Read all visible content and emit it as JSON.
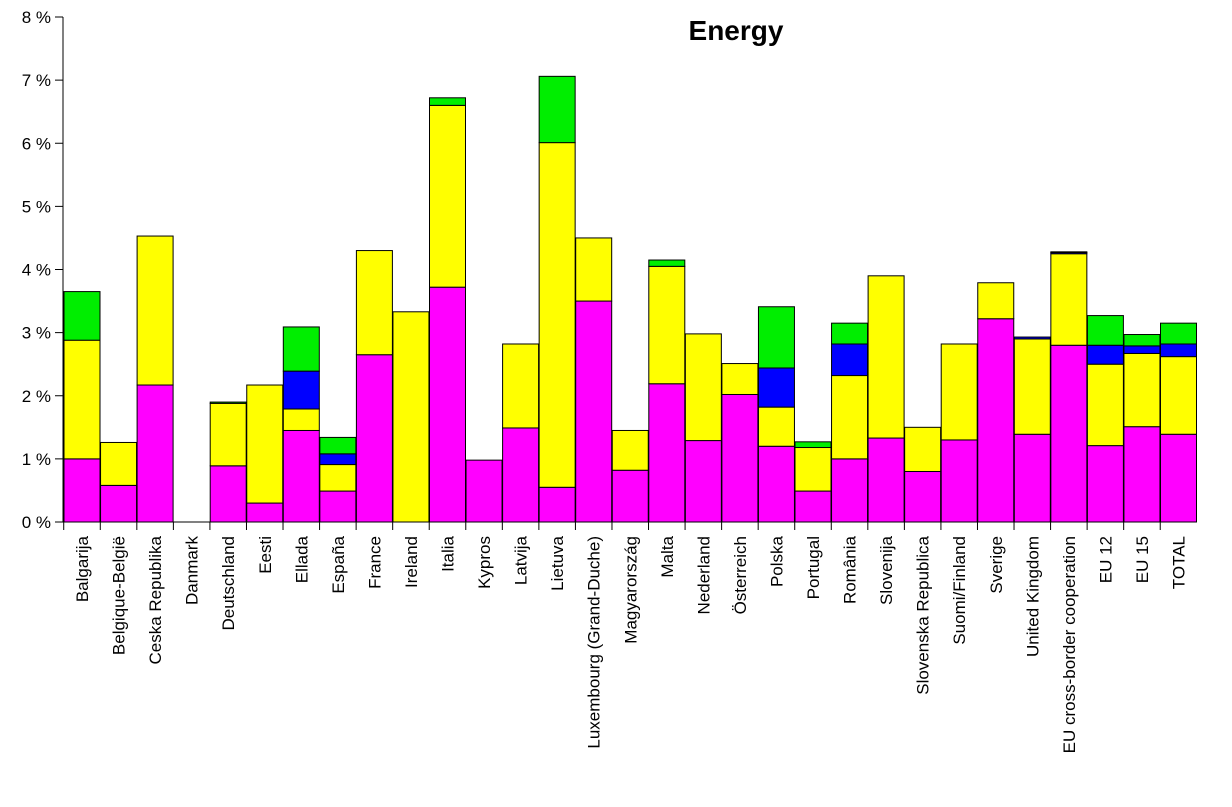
{
  "chart_data": {
    "type": "bar",
    "stacked": true,
    "title": "Energy",
    "xlabel": "",
    "ylabel": "",
    "ylim": [
      0,
      8
    ],
    "y_ticks": [
      0,
      1,
      2,
      3,
      4,
      5,
      6,
      7,
      8
    ],
    "y_tick_labels": [
      "0 %",
      "1 %",
      "2 %",
      "3 %",
      "4 %",
      "5 %",
      "6 %",
      "7 %",
      "8 %"
    ],
    "grid": false,
    "legend": "none",
    "categories": [
      "Balgarija",
      "Belgique-België",
      "Ceska Republika",
      "Danmark",
      "Deutschland",
      "Eesti",
      "Ellada",
      "España",
      "France",
      "Ireland",
      "Italia",
      "Kypros",
      "Latvija",
      "Lietuva",
      "Luxembourg (Grand-Duche)",
      "Magyarország",
      "Malta",
      "Nederland",
      "Österreich",
      "Polska",
      "Portugal",
      "România",
      "Slovenija",
      "Slovenska Republica",
      "Suomi/Finland",
      "Sverige",
      "United Kingdom",
      "EU cross-border cooperation",
      "EU 12",
      "EU 15",
      "TOTAL"
    ],
    "series": [
      {
        "color": "#ff00ff",
        "values": [
          1.0,
          0.58,
          2.17,
          0,
          0.89,
          0.3,
          1.45,
          0.49,
          2.65,
          0,
          3.72,
          0.98,
          1.49,
          0.55,
          3.5,
          0.82,
          2.19,
          1.29,
          2.02,
          1.2,
          0.49,
          1.0,
          1.33,
          0.8,
          1.3,
          3.22,
          1.39,
          2.8,
          1.21,
          1.51,
          1.39
        ]
      },
      {
        "color": "#ffff00",
        "values": [
          1.88,
          0.68,
          2.36,
          0,
          0.99,
          1.87,
          0.34,
          0.42,
          1.65,
          3.33,
          2.88,
          0,
          1.33,
          5.46,
          1.0,
          0.63,
          1.86,
          1.69,
          0.49,
          0.62,
          0.69,
          1.32,
          2.57,
          0.7,
          1.52,
          0.57,
          1.51,
          1.45,
          1.29,
          1.16,
          1.23
        ]
      },
      {
        "color": "#0000ff",
        "values": [
          0,
          0,
          0,
          0,
          0,
          0,
          0.6,
          0.17,
          0,
          0,
          0,
          0,
          0,
          0,
          0,
          0,
          0,
          0,
          0,
          0.62,
          0,
          0.5,
          0,
          0,
          0,
          0,
          0.03,
          0.02,
          0.3,
          0.12,
          0.2
        ]
      },
      {
        "color": "#00ee00",
        "values": [
          0.77,
          0,
          0,
          0,
          0.02,
          0,
          0.7,
          0.26,
          0,
          0,
          0.12,
          0,
          0,
          1.05,
          0,
          0,
          0.1,
          0,
          0,
          0.97,
          0.09,
          0.33,
          0,
          0,
          0,
          0,
          0,
          0.01,
          0.47,
          0.18,
          0.33
        ]
      }
    ]
  }
}
